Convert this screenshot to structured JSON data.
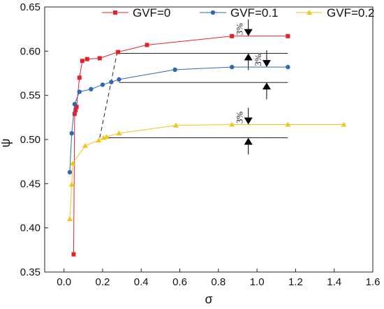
{
  "chart_data": {
    "type": "line",
    "xlabel": "σ",
    "ylabel": "ψ",
    "xlim": [
      -0.1,
      1.6
    ],
    "ylim": [
      0.35,
      0.65
    ],
    "xticks": [
      "0.0",
      "0.2",
      "0.4",
      "0.6",
      "0.8",
      "1.0",
      "1.2",
      "1.4",
      "1.6"
    ],
    "yticks": [
      "0.35",
      "0.40",
      "0.45",
      "0.50",
      "0.55",
      "0.60",
      "0.65"
    ],
    "legend_position": "top",
    "grid": false,
    "series": [
      {
        "name": "GVF=0",
        "color": "#e8202a",
        "marker": "square",
        "x": [
          0.05,
          0.055,
          0.06,
          0.065,
          0.08,
          0.095,
          0.12,
          0.185,
          0.28,
          0.43,
          0.87,
          1.16
        ],
        "y": [
          0.37,
          0.529,
          0.533,
          0.537,
          0.57,
          0.589,
          0.591,
          0.592,
          0.599,
          0.607,
          0.617,
          0.617
        ]
      },
      {
        "name": "GVF=0.1",
        "color": "#2e6ab0",
        "marker": "circle",
        "x": [
          0.03,
          0.04,
          0.055,
          0.08,
          0.14,
          0.2,
          0.245,
          0.285,
          0.575,
          0.87,
          1.16
        ],
        "y": [
          0.463,
          0.507,
          0.54,
          0.554,
          0.557,
          0.562,
          0.565,
          0.568,
          0.579,
          0.582,
          0.582
        ]
      },
      {
        "name": "GVF=0.2",
        "color": "#f5c518",
        "marker": "triangle",
        "x": [
          0.03,
          0.04,
          0.045,
          0.11,
          0.18,
          0.205,
          0.22,
          0.285,
          0.58,
          0.87,
          1.16,
          1.45
        ],
        "y": [
          0.41,
          0.449,
          0.473,
          0.493,
          0.499,
          0.502,
          0.503,
          0.507,
          0.516,
          0.517,
          0.517,
          0.517
        ]
      }
    ],
    "annotations": [
      {
        "type": "hline",
        "y": 0.5975,
        "x_from": 0.28,
        "x_to": 1.16
      },
      {
        "type": "hline",
        "y": 0.5645,
        "x_from": 0.285,
        "x_to": 1.16
      },
      {
        "type": "hline",
        "y": 0.502,
        "x_from": 0.205,
        "x_to": 1.16
      },
      {
        "type": "dashed-line",
        "x": [
          0.185,
          0.275
        ],
        "y": [
          0.502,
          0.598
        ]
      },
      {
        "type": "gap-arrows",
        "label": "3%",
        "x": 0.955,
        "y_top": 0.617,
        "y_bottom": 0.5975
      },
      {
        "type": "gap-arrows",
        "label": "3%",
        "x": 1.05,
        "y_top": 0.582,
        "y_bottom": 0.5645
      },
      {
        "type": "gap-arrows",
        "label": "3%",
        "x": 0.955,
        "y_top": 0.517,
        "y_bottom": 0.502
      }
    ]
  }
}
